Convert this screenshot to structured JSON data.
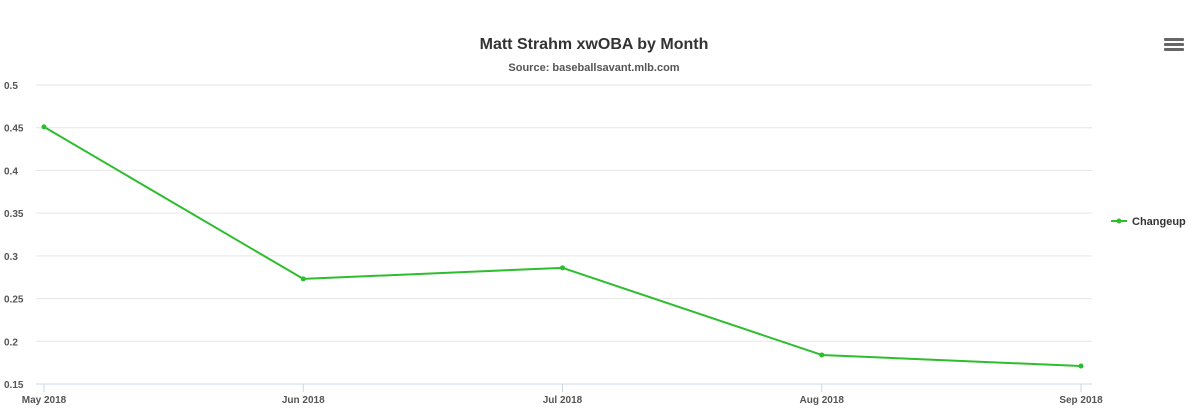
{
  "chart_data": {
    "type": "line",
    "title": "Matt Strahm xwOBA by Month",
    "subtitle": "Source: baseballsavant.mlb.com",
    "categories": [
      "May 2018",
      "Jun 2018",
      "Jul 2018",
      "Aug 2018",
      "Sep 2018"
    ],
    "series": [
      {
        "name": "Changeup",
        "values": [
          0.451,
          0.273,
          0.286,
          0.184,
          0.171
        ],
        "color": "#2ebd2e"
      }
    ],
    "yticks": [
      "0.15",
      "0.2",
      "0.25",
      "0.3",
      "0.35",
      "0.4",
      "0.45",
      "0.5"
    ],
    "ylim": [
      0.15,
      0.5
    ],
    "grid": true,
    "legend_position": "right"
  },
  "menu": {
    "icon": "hamburger-menu-icon"
  }
}
